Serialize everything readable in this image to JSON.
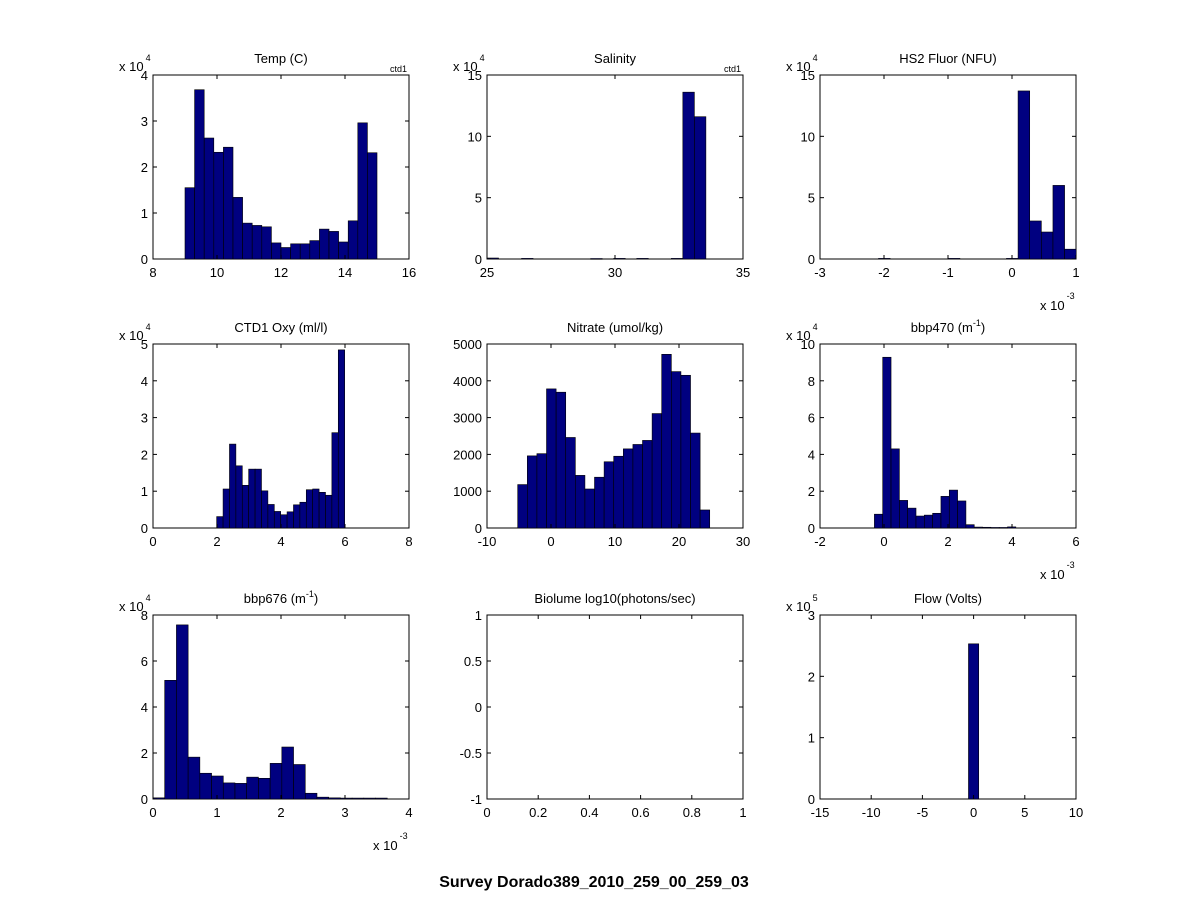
{
  "figure": {
    "suptitle": "Survey Dorado389_2010_259_00_259_03",
    "bar_color": "#000080",
    "edge_color": "#000000"
  },
  "chart_data": [
    {
      "type": "bar",
      "title": "Temp (C)",
      "corner_label": "ctd1",
      "xticks": [
        "8",
        "10",
        "12",
        "14",
        "16"
      ],
      "xlim": [
        8,
        16
      ],
      "yticks": [
        "0",
        "1",
        "2",
        "3",
        "4"
      ],
      "ylim": [
        0,
        4
      ],
      "ymult": "x 10",
      "ymult_exp": "4",
      "xmult": "",
      "xmult_exp": "",
      "bin_start": 9.0,
      "bin_width": 0.3,
      "values": [
        1.55,
        3.68,
        2.63,
        2.32,
        2.43,
        1.34,
        0.78,
        0.73,
        0.7,
        0.35,
        0.25,
        0.33,
        0.33,
        0.4,
        0.65,
        0.6,
        0.37,
        0.83,
        2.96,
        2.31
      ]
    },
    {
      "type": "bar",
      "title": "Salinity",
      "corner_label": "ctd1",
      "xticks": [
        "25",
        "30",
        "35"
      ],
      "xlim": [
        25,
        35
      ],
      "yticks": [
        "0",
        "5",
        "10",
        "15"
      ],
      "ylim": [
        0,
        15
      ],
      "ymult": "x 10",
      "ymult_exp": "4",
      "xmult": "",
      "xmult_exp": "",
      "bin_start": 25.0,
      "bin_width": 0.45,
      "values": [
        0.08,
        0,
        0,
        0.05,
        0,
        0,
        0,
        0,
        0,
        0.04,
        0,
        0.05,
        0,
        0.05,
        0,
        0,
        0.05,
        13.6,
        11.6
      ]
    },
    {
      "type": "bar",
      "title": "HS2 Fluor (NFU)",
      "corner_label": "",
      "xticks": [
        "-3",
        "-2",
        "-1",
        "0",
        "1"
      ],
      "xlim": [
        -0.003,
        0.001
      ],
      "yticks": [
        "0",
        "5",
        "10",
        "15"
      ],
      "ylim": [
        0,
        15
      ],
      "ymult": "x 10",
      "ymult_exp": "4",
      "xmult": "x 10",
      "xmult_exp": "-3",
      "bin_start": -0.002994,
      "bin_width": 0.0001817,
      "values": [
        0,
        0,
        0,
        0,
        0,
        0.05,
        0,
        0,
        0,
        0,
        0,
        0.05,
        0,
        0,
        0,
        0,
        0.05,
        13.7,
        3.1,
        2.2,
        6.0,
        0.8
      ]
    },
    {
      "type": "bar",
      "title": "CTD1 Oxy (ml/l)",
      "title_sup": "",
      "title_after": "",
      "corner_label": "",
      "xticks": [
        "0",
        "2",
        "4",
        "6",
        "8"
      ],
      "xlim": [
        0,
        8
      ],
      "yticks": [
        "0",
        "1",
        "2",
        "3",
        "4",
        "5"
      ],
      "ylim": [
        0,
        5
      ],
      "ymult": "x 10",
      "ymult_exp": "4",
      "xmult": "",
      "xmult_exp": "",
      "bin_start": 1.99,
      "bin_width": 0.2,
      "values": [
        0.31,
        1.06,
        2.28,
        1.69,
        1.16,
        1.6,
        1.6,
        1.01,
        0.64,
        0.45,
        0.36,
        0.44,
        0.63,
        0.7,
        1.04,
        1.06,
        0.97,
        0.89,
        2.59,
        4.84
      ]
    },
    {
      "type": "bar",
      "title": "Nitrate (umol/kg)",
      "corner_label": "",
      "xticks": [
        "-10",
        "0",
        "10",
        "20",
        "30"
      ],
      "xlim": [
        -10,
        30
      ],
      "yticks": [
        "0",
        "1000",
        "2000",
        "3000",
        "4000",
        "5000"
      ],
      "ylim": [
        0,
        5000
      ],
      "ymult": "",
      "ymult_exp": "",
      "xmult": "",
      "xmult_exp": "",
      "bin_start": -5.2,
      "bin_width": 1.5,
      "values": [
        1180,
        1960,
        2020,
        3780,
        3690,
        2460,
        1430,
        1060,
        1380,
        1800,
        1950,
        2150,
        2270,
        2380,
        3110,
        4720,
        4250,
        4150,
        2580,
        490
      ]
    },
    {
      "type": "bar",
      "title": "bbp470 (m",
      "title_sup": "-1",
      "title_after": ")",
      "corner_label": "",
      "xticks": [
        "-2",
        "0",
        "2",
        "4",
        "6"
      ],
      "xlim": [
        -0.002,
        0.006
      ],
      "yticks": [
        "0",
        "2",
        "4",
        "6",
        "8",
        "10"
      ],
      "ylim": [
        0,
        10
      ],
      "ymult": "x 10",
      "ymult_exp": "4",
      "xmult": "x 10",
      "xmult_exp": "-3",
      "bin_start": -0.0003,
      "bin_width": 0.00026,
      "values": [
        0.75,
        9.28,
        4.3,
        1.5,
        1.08,
        0.65,
        0.7,
        0.8,
        1.72,
        2.06,
        1.47,
        0.18,
        0.05,
        0.04,
        0.03,
        0.03,
        0.06
      ]
    },
    {
      "type": "bar",
      "title": "bbp676 (m",
      "title_sup": "-1",
      "title_after": ")",
      "corner_label": "",
      "xticks": [
        "0",
        "1",
        "2",
        "3",
        "4"
      ],
      "xlim": [
        0,
        0.004
      ],
      "yticks": [
        "0",
        "2",
        "4",
        "6",
        "8"
      ],
      "ylim": [
        0,
        8
      ],
      "ymult": "x 10",
      "ymult_exp": "4",
      "xmult": "x 10",
      "xmult_exp": "-3",
      "bin_start": 0.0,
      "bin_width": 0.000183,
      "values": [
        0.05,
        5.16,
        7.57,
        1.82,
        1.12,
        1.0,
        0.7,
        0.68,
        0.95,
        0.9,
        1.55,
        2.26,
        1.5,
        0.25,
        0.08,
        0.05,
        0.04,
        0.04,
        0.04,
        0.04
      ]
    },
    {
      "type": "bar",
      "title": "Biolume log10(photons/sec)",
      "corner_label": "",
      "xticks": [
        "0",
        "0.2",
        "0.4",
        "0.6",
        "0.8",
        "1"
      ],
      "xlim": [
        0,
        1
      ],
      "yticks": [
        "-1",
        "-0.5",
        "0",
        "0.5",
        "1"
      ],
      "ylim": [
        -1,
        1
      ],
      "ymult": "",
      "ymult_exp": "",
      "xmult": "",
      "xmult_exp": "",
      "bin_start": 0,
      "bin_width": 0.1,
      "values": []
    },
    {
      "type": "bar",
      "title": "Flow (Volts)",
      "corner_label": "",
      "xticks": [
        "-15",
        "-10",
        "-5",
        "0",
        "5",
        "10"
      ],
      "xlim": [
        -15,
        10
      ],
      "yticks": [
        "0",
        "1",
        "2",
        "3"
      ],
      "ylim": [
        0,
        3
      ],
      "ymult": "x 10",
      "ymult_exp": "5",
      "xmult": "",
      "xmult_exp": "",
      "bin_start": -0.5,
      "bin_width": 1.0,
      "values": [
        2.53
      ]
    }
  ]
}
